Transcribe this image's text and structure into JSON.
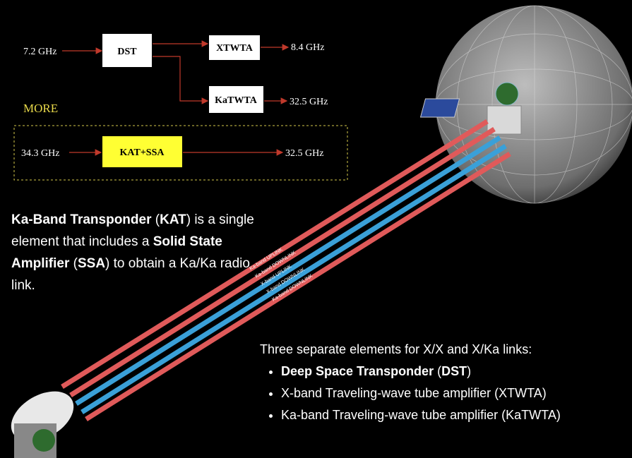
{
  "block_diagram": {
    "input_x": "7.2 GHz",
    "dst": "DST",
    "xtwta": "XTWTA",
    "output_x": "8.4 GHz",
    "katwta": "KaTWTA",
    "output_ka": "32.5 GHz",
    "more": "MORE",
    "input_kat": "34.3 GHz",
    "kat_ssa": "KAT+SSA",
    "output_kat": "32.5 GHz"
  },
  "beam_labels": [
    "Ka-band UPLINK",
    "Ka-band DOWNLINK",
    "X-band UPLINK",
    "X-band DOWNLINK",
    "Ka-band DOWNLINK"
  ],
  "kat_description": [
    {
      "text": "Ka-Band Transponder",
      "bold": true
    },
    {
      "text": " (",
      "bold": false
    },
    {
      "text": "KAT",
      "bold": true
    },
    {
      "text": ") is a single element that includes a ",
      "bold": false
    },
    {
      "text": "Solid State Amplifier",
      "bold": true
    },
    {
      "text": " (",
      "bold": false
    },
    {
      "text": "SSA",
      "bold": true
    },
    {
      "text": ") to obtain a Ka/Ka radio link.",
      "bold": false
    }
  ],
  "separate_elements": {
    "heading": "Three separate elements for X/X and X/Ka links:",
    "items": [
      [
        {
          "text": "Deep Space Transponder",
          "bold": true
        },
        {
          "text": " (",
          "bold": false
        },
        {
          "text": "DST",
          "bold": true
        },
        {
          "text": ")",
          "bold": false
        }
      ],
      [
        {
          "text": "X-band Traveling-wave tube amplifier (XTWTA)",
          "bold": false
        }
      ],
      [
        {
          "text": "Ka-band Traveling-wave tube amplifier (KaTWTA)",
          "bold": false
        }
      ]
    ]
  }
}
